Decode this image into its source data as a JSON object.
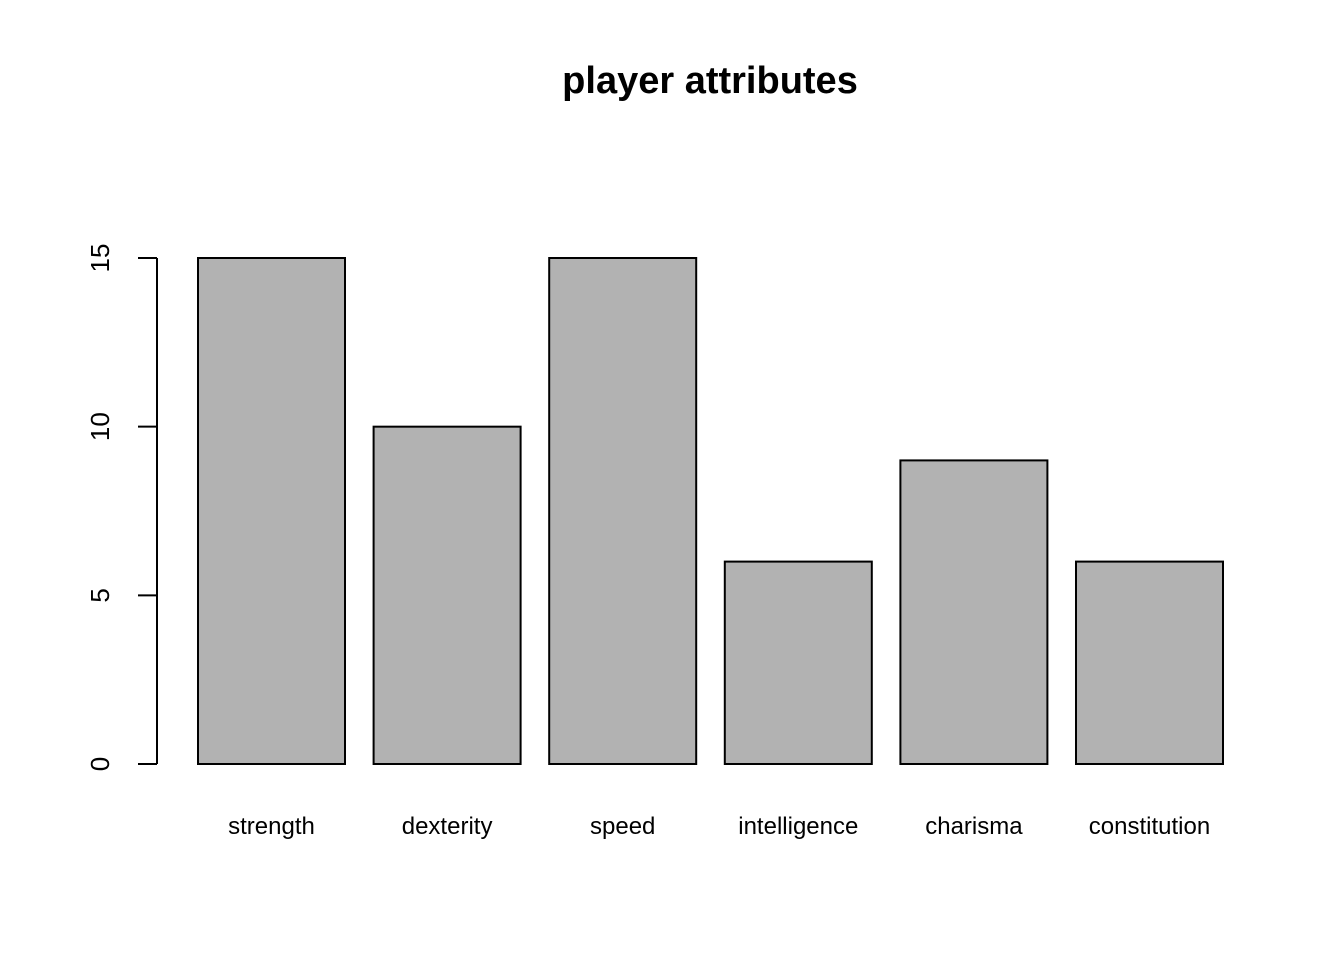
{
  "chart_data": {
    "type": "bar",
    "title": "player attributes",
    "xlabel": "",
    "ylabel": "",
    "categories": [
      "strength",
      "dexterity",
      "speed",
      "intelligence",
      "charisma",
      "constitution"
    ],
    "values": [
      15,
      10,
      15,
      6,
      9,
      6
    ],
    "ylim": [
      0,
      15
    ],
    "yticks": [
      0,
      5,
      10,
      15
    ],
    "ytick_labels": [
      "0",
      "5",
      "10",
      "15"
    ],
    "bar_fill": "#b2b2b2",
    "bar_stroke": "#000000",
    "grid": false,
    "legend": "none"
  }
}
